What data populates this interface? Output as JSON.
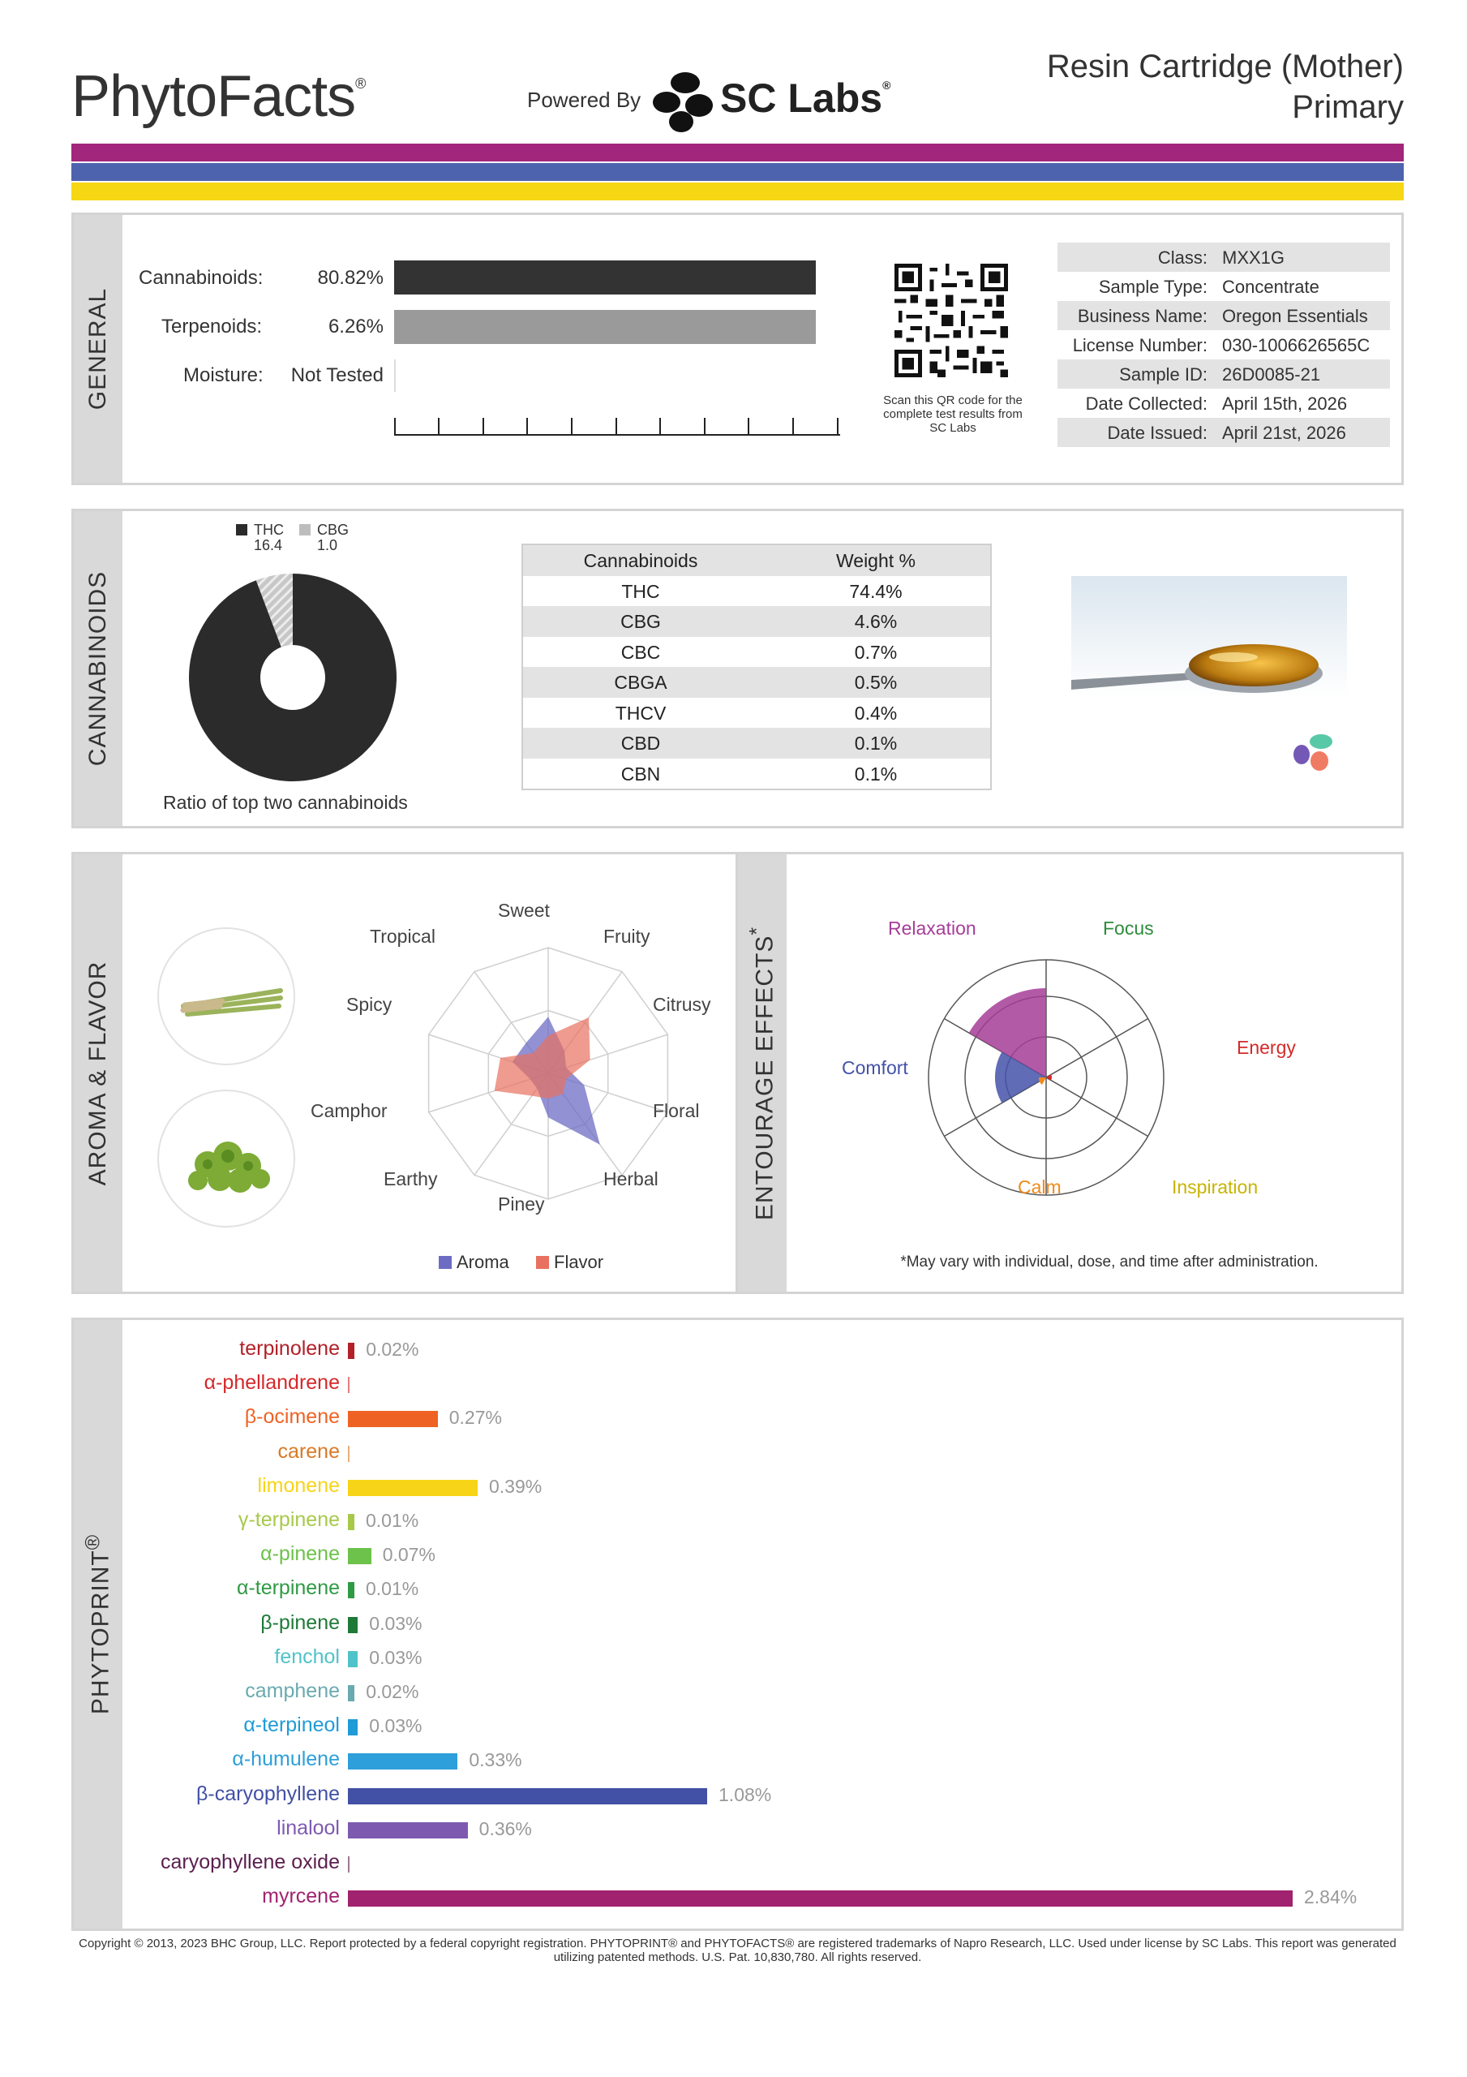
{
  "header": {
    "brand": "PhytoFacts",
    "brand_mark": "®",
    "powered_by": "Powered By",
    "lab_name": "SC Labs",
    "lab_mark": "®",
    "product_line1": "Resin Cartridge (Mother)",
    "product_line2": "Primary",
    "stripe_colors": [
      "#a2267c",
      "#4e63ad",
      "#f5d713"
    ]
  },
  "general": {
    "section_label": "GENERAL",
    "cannabinoids_label": "Cannabinoids:",
    "cannabinoids_value": "80.82%",
    "terpenoids_label": "Terpenoids:",
    "terpenoids_value": "6.26%",
    "moisture_label": "Moisture:",
    "moisture_value": "Not Tested",
    "qr_caption": "Scan this QR code for the complete test results from SC Labs",
    "info": [
      {
        "key": "Class:",
        "value": "MXX1G"
      },
      {
        "key": "Sample Type:",
        "value": "Concentrate"
      },
      {
        "key": "Business Name:",
        "value": "Oregon Essentials"
      },
      {
        "key": "License Number:",
        "value": "030-1006626565C"
      },
      {
        "key": "Sample ID:",
        "value": "26D0085-21"
      },
      {
        "key": "Date Collected:",
        "value": "April 15th, 2026"
      },
      {
        "key": "Date Issued:",
        "value": "April 21st, 2026"
      }
    ]
  },
  "cannabinoids": {
    "section_label": "CANNABINOIDS",
    "ratio_caption": "Ratio of top two cannabinoids",
    "legend": [
      {
        "name": "THC",
        "value": "16.4",
        "color": "#2b2b2b"
      },
      {
        "name": "CBG",
        "value": "1.0",
        "color": "#bdbdbd"
      }
    ],
    "table_headers": [
      "Cannabinoids",
      "Weight %"
    ],
    "table_rows": [
      [
        "THC",
        "74.4%"
      ],
      [
        "CBG",
        "4.6%"
      ],
      [
        "CBC",
        "0.7%"
      ],
      [
        "CBGA",
        "0.5%"
      ],
      [
        "THCV",
        "0.4%"
      ],
      [
        "CBD",
        "0.1%"
      ],
      [
        "CBN",
        "0.1%"
      ]
    ]
  },
  "aroma": {
    "section_label": "AROMA & FLAVOR",
    "radar_labels": [
      "Sweet",
      "Fruity",
      "Citrusy",
      "Floral",
      "Herbal",
      "Piney",
      "Earthy",
      "Camphor",
      "Spicy",
      "Tropical"
    ],
    "legend_aroma": "Aroma",
    "legend_flavor": "Flavor",
    "aroma_color": "#6c6cc4",
    "flavor_color": "#e8715f"
  },
  "effects": {
    "section_label": "ENTOURAGE EFFECTS",
    "section_mark": "*",
    "labels": [
      {
        "text": "Relaxation",
        "color": "#a63d98"
      },
      {
        "text": "Focus",
        "color": "#2e8b3a"
      },
      {
        "text": "Energy",
        "color": "#d42a2a"
      },
      {
        "text": "Inspiration",
        "color": "#c7b400"
      },
      {
        "text": "Calm",
        "color": "#f08a1c"
      },
      {
        "text": "Comfort",
        "color": "#4452a8"
      }
    ],
    "footnote": "*May vary with individual, dose, and time after administration."
  },
  "phytoprint": {
    "section_label": "PHYTOPRINT",
    "section_mark": "®",
    "terpenes": [
      {
        "name": "terpinolene",
        "value": "0.02%",
        "pct": 0.02,
        "color": "#b22028"
      },
      {
        "name": "α-phellandrene",
        "value": "",
        "pct": 0.0,
        "color": "#d5282b"
      },
      {
        "name": "β-ocimene",
        "value": "0.27%",
        "pct": 0.27,
        "color": "#ee6323"
      },
      {
        "name": "carene",
        "value": "",
        "pct": 0.0,
        "color": "#d87a25"
      },
      {
        "name": "limonene",
        "value": "0.39%",
        "pct": 0.39,
        "color": "#f7d417"
      },
      {
        "name": "γ-terpinene",
        "value": "0.01%",
        "pct": 0.01,
        "color": "#a7c94a"
      },
      {
        "name": "α-pinene",
        "value": "0.07%",
        "pct": 0.07,
        "color": "#6cc24a"
      },
      {
        "name": "α-terpinene",
        "value": "0.01%",
        "pct": 0.01,
        "color": "#2f9a44"
      },
      {
        "name": "β-pinene",
        "value": "0.03%",
        "pct": 0.03,
        "color": "#1f7a38"
      },
      {
        "name": "fenchol",
        "value": "0.03%",
        "pct": 0.03,
        "color": "#4fc3c9"
      },
      {
        "name": "camphene",
        "value": "0.02%",
        "pct": 0.02,
        "color": "#6aaab0"
      },
      {
        "name": "α-terpineol",
        "value": "0.03%",
        "pct": 0.03,
        "color": "#1f9bd7"
      },
      {
        "name": "α-humulene",
        "value": "0.33%",
        "pct": 0.33,
        "color": "#2d9fda"
      },
      {
        "name": "β-caryophyllene",
        "value": "1.08%",
        "pct": 1.08,
        "color": "#4250a5"
      },
      {
        "name": "linalool",
        "value": "0.36%",
        "pct": 0.36,
        "color": "#7d5ab0"
      },
      {
        "name": "caryophyllene oxide",
        "value": "",
        "pct": 0.0,
        "color": "#5b1f4e"
      },
      {
        "name": "myrcene",
        "value": "2.84%",
        "pct": 2.84,
        "color": "#a1226f"
      }
    ]
  },
  "footer": {
    "copyright": "Copyright © 2013, 2023 BHC Group, LLC. Report protected by a federal copyright registration. PHYTOPRINT® and PHYTOFACTS® are registered trademarks of Napro Research, LLC. Used under license by SC Labs. This report was generated utilizing patented methods. U.S. Pat. 10,830,780. All rights reserved."
  }
}
